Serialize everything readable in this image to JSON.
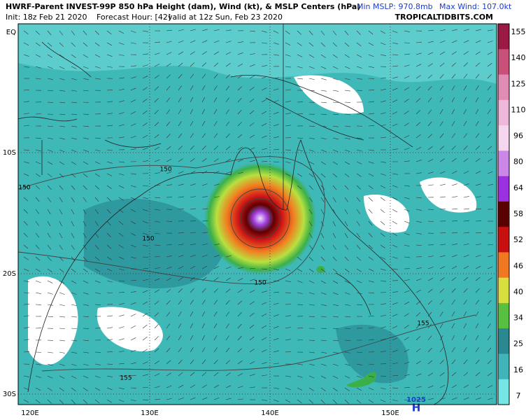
{
  "header": {
    "title": "HWRF-Parent INVEST-99P 850 hPa Height (dam), Wind (kt), & MSLP Centers (hPa)",
    "min_mslp": "Min MSLP: 970.8mb",
    "max_wind": "Max Wind: 107.0kt",
    "init": "Init: 18z Feb 21 2020",
    "forecast_hour": "Forecast Hour: [42]",
    "valid": "valid at 12z Sun, Feb 23 2020",
    "credit": "TROPICALTIDBITS.COM"
  },
  "colorbar": {
    "labels": [
      155,
      140,
      125,
      110,
      96,
      80,
      64,
      58,
      52,
      46,
      40,
      34,
      25,
      16,
      7
    ],
    "colors": [
      "#9a1a44",
      "#c8507a",
      "#e08cb4",
      "#eeb8da",
      "#f4d6ee",
      "#cc88e8",
      "#9a30e0",
      "#5a0000",
      "#c81010",
      "#f07820",
      "#d8e040",
      "#58c040",
      "#2a8890",
      "#40b4b8",
      "#74e4e4"
    ]
  },
  "lat_labels": [
    "EQ",
    "10S",
    "20S",
    "30S"
  ],
  "lon_labels": [
    "120E",
    "130E",
    "140E",
    "150E"
  ],
  "contour_labels": [
    "150",
    "150",
    "150",
    "150",
    "155",
    "155"
  ],
  "pressure_center": {
    "value": "1025",
    "symbol": "H"
  }
}
